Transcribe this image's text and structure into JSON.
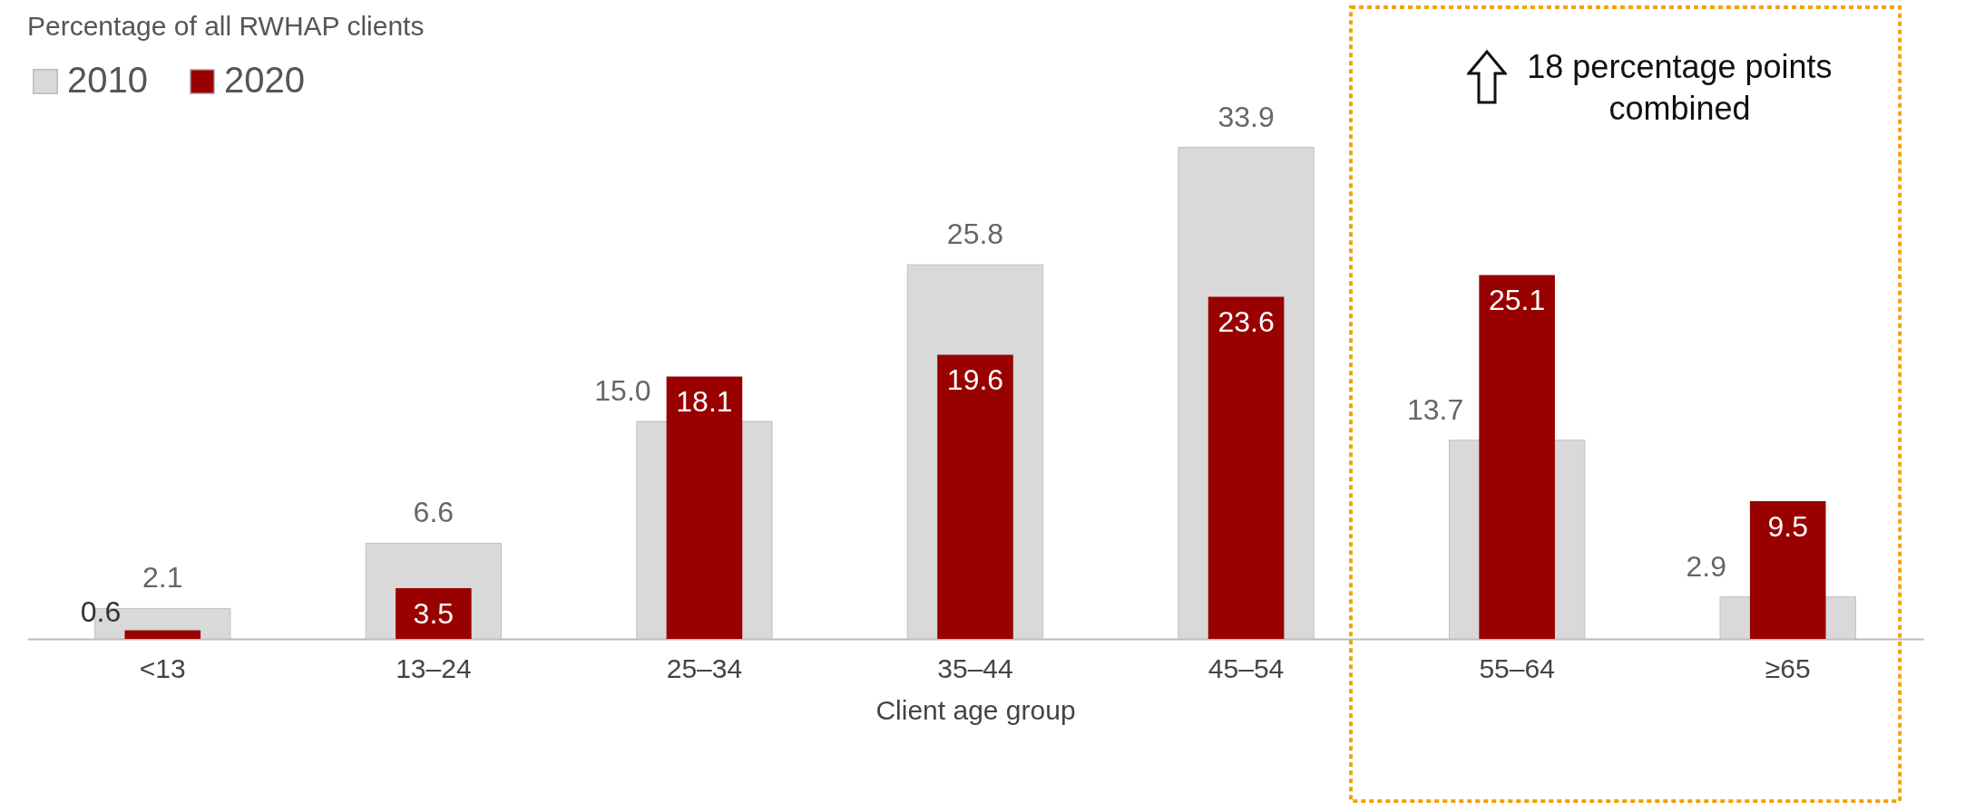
{
  "chart_data": {
    "type": "bar",
    "ylabel": "Percentage of all RWHAP clients",
    "xlabel": "Client age group",
    "categories": [
      "<13",
      "13–24",
      "25–34",
      "35–44",
      "45–54",
      "55–64",
      "≥65"
    ],
    "series": [
      {
        "name": "2010",
        "color": "#d9d9d9",
        "values": [
          2.1,
          6.6,
          15.0,
          25.8,
          33.9,
          13.7,
          2.9
        ],
        "value_labels": [
          "2.1",
          "6.6",
          "15.0",
          "25.8",
          "33.9",
          "13.7",
          "2.9"
        ]
      },
      {
        "name": "2020",
        "color": "#990000",
        "values": [
          0.6,
          3.5,
          18.1,
          19.6,
          23.6,
          25.1,
          9.5
        ],
        "value_labels": [
          "0.6",
          "3.5",
          "18.1",
          "19.6",
          "23.6",
          "25.1",
          "9.5"
        ]
      }
    ],
    "legend": "top left",
    "annotations": [
      "18 percentage points combined"
    ]
  }
}
